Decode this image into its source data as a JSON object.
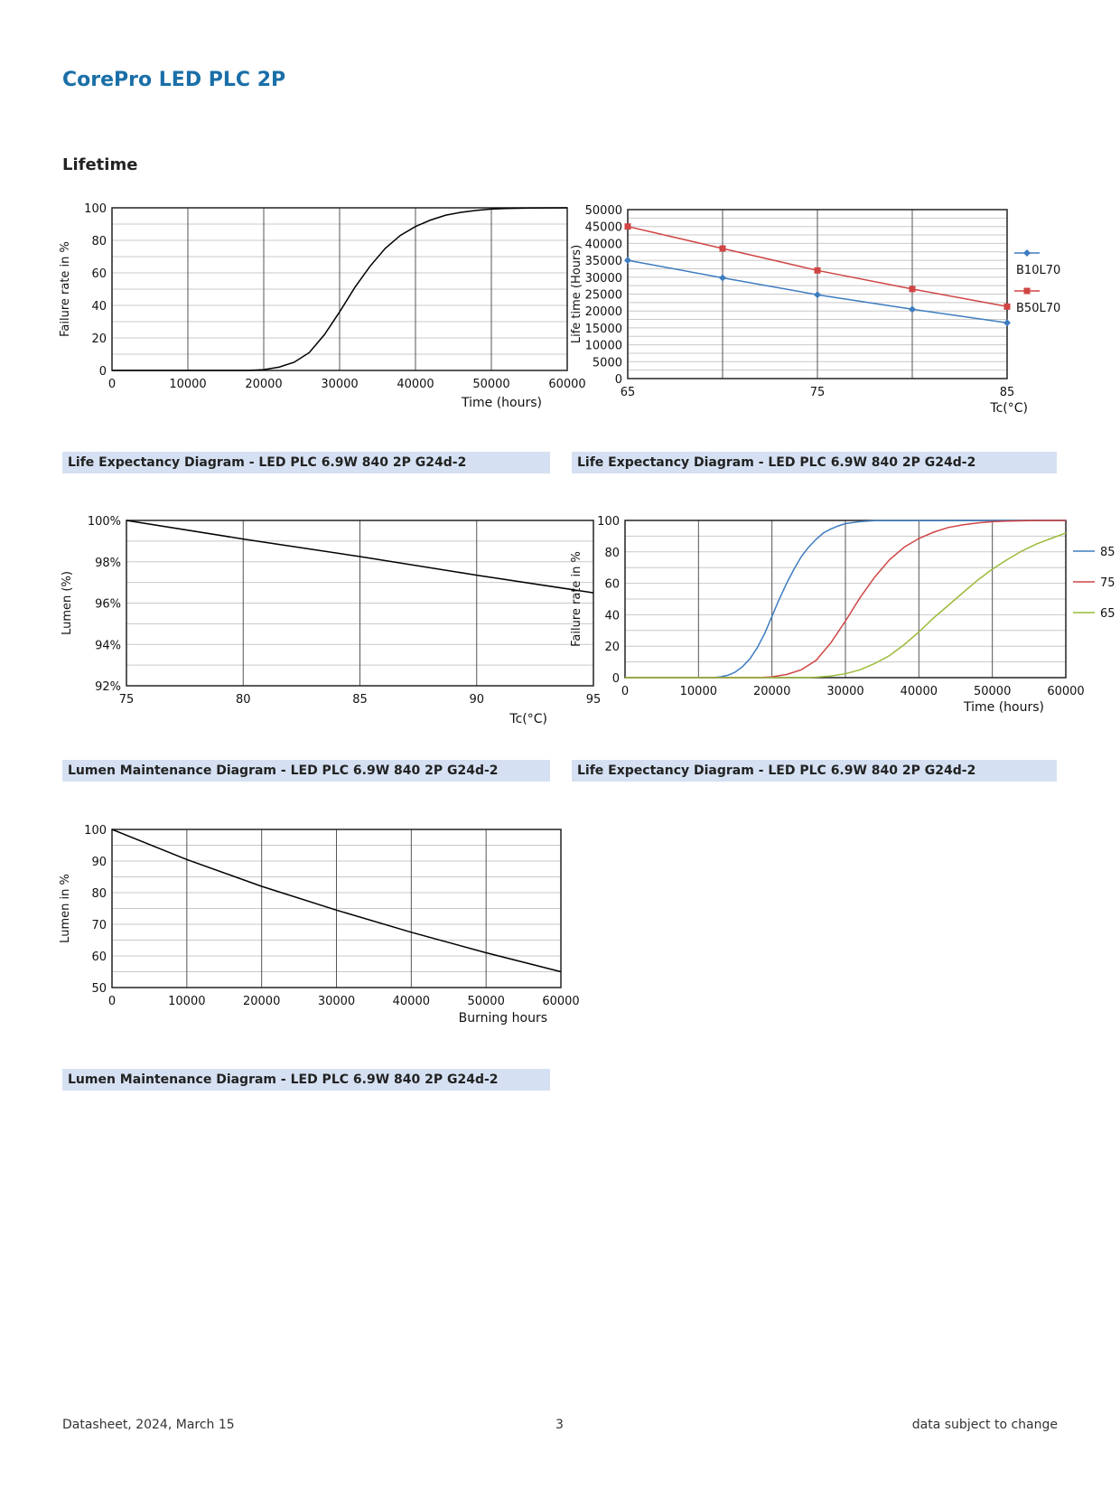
{
  "page": {
    "title": "CorePro LED PLC 2P",
    "section": "Lifetime",
    "footer": {
      "left": "Datasheet, 2024, March 15",
      "center": "3",
      "right": "data subject to change"
    }
  },
  "captions": {
    "c1": "Life Expectancy Diagram - LED PLC 6.9W 840 2P G24d-2",
    "c2": "Life Expectancy Diagram - LED PLC 6.9W 840 2P G24d-2",
    "c3": "Lumen Maintenance Diagram - LED PLC 6.9W 840 2P G24d-2",
    "c4": "Life Expectancy Diagram - LED PLC 6.9W 840 2P G24d-2",
    "c5": "Lumen Maintenance Diagram - LED PLC 6.9W 840 2P G24d-2"
  },
  "chart_data": [
    {
      "type": "line",
      "xlabel": "Time (hours)",
      "ylabel": "Failure rate in %",
      "xlim": [
        0,
        60000
      ],
      "ylim": [
        0,
        100
      ],
      "xticks": [
        "0",
        "10000",
        "20000",
        "30000",
        "40000",
        "50000",
        "60000"
      ],
      "yticks": [
        "0",
        "20",
        "40",
        "60",
        "80",
        "100"
      ],
      "grid": true,
      "line_color": "#000000",
      "series": [
        {
          "x": [
            0,
            18000,
            20000,
            22000,
            24000,
            26000,
            28000,
            30000,
            32000,
            34000,
            36000,
            38000,
            40000,
            42000,
            44000,
            46000,
            48000,
            50000,
            52000,
            55000,
            60000
          ],
          "values": [
            0,
            0,
            0.5,
            2,
            5,
            11,
            22,
            36,
            51,
            64,
            75,
            83,
            88.5,
            92.5,
            95.5,
            97.2,
            98.4,
            99.2,
            99.6,
            99.9,
            100
          ]
        }
      ]
    },
    {
      "type": "line",
      "xlabel": "Tc(°C)",
      "ylabel": "Life time (Hours)",
      "xlim": [
        65,
        85
      ],
      "ylim": [
        0,
        50000
      ],
      "xticks": [
        "65",
        "75",
        "85"
      ],
      "yticks": [
        "0",
        "5000",
        "10000",
        "15000",
        "20000",
        "25000",
        "30000",
        "35000",
        "40000",
        "45000",
        "50000"
      ],
      "grid": true,
      "legend": "right",
      "series": [
        {
          "name": "B10L70",
          "color": "#3d7cc0",
          "marker": "diamond",
          "x": [
            65,
            70,
            75,
            80,
            85
          ],
          "values": [
            35000,
            29800,
            24800,
            20500,
            16500
          ]
        },
        {
          "name": "B50L70",
          "color": "#d04545",
          "marker": "square",
          "x": [
            65,
            70,
            75,
            80,
            85
          ],
          "values": [
            45000,
            38500,
            32000,
            26500,
            21300
          ]
        }
      ]
    },
    {
      "type": "line",
      "xlabel": "Tc(°C)",
      "ylabel": "Lumen (%)",
      "xlim": [
        75,
        95
      ],
      "ylim": [
        92,
        100
      ],
      "xticks": [
        "75",
        "80",
        "85",
        "90",
        "95"
      ],
      "yticks": [
        "92%",
        "94%",
        "96%",
        "98%",
        "100%"
      ],
      "grid": true,
      "line_color": "#000000",
      "series": [
        {
          "x": [
            75,
            80,
            85,
            90,
            95
          ],
          "values": [
            100,
            99.1,
            98.25,
            97.35,
            96.5
          ]
        }
      ]
    },
    {
      "type": "line",
      "xlabel": "Time (hours)",
      "ylabel": "Failure rate in %",
      "xlim": [
        0,
        60000
      ],
      "ylim": [
        0,
        100
      ],
      "xticks": [
        "0",
        "10000",
        "20000",
        "30000",
        "40000",
        "50000",
        "60000"
      ],
      "yticks": [
        "0",
        "20",
        "40",
        "60",
        "80",
        "100"
      ],
      "grid": true,
      "legend": "right",
      "series": [
        {
          "name": "85",
          "color": "#3d7cc0",
          "x": [
            0,
            12000,
            13000,
            14000,
            15000,
            16000,
            17000,
            18000,
            19000,
            20000,
            21000,
            22000,
            23000,
            24000,
            25000,
            26000,
            27000,
            28000,
            29000,
            30000,
            32000,
            34000,
            60000
          ],
          "values": [
            0,
            0,
            0.5,
            1.5,
            3.5,
            7,
            12,
            19,
            28,
            39,
            50,
            60,
            69,
            77,
            83,
            88,
            92,
            94.5,
            96.5,
            98,
            99.3,
            99.8,
            100
          ]
        },
        {
          "name": "75",
          "color": "#d04545",
          "x": [
            0,
            18000,
            20000,
            22000,
            24000,
            26000,
            28000,
            30000,
            32000,
            34000,
            36000,
            38000,
            40000,
            42000,
            44000,
            46000,
            48000,
            50000,
            52000,
            55000,
            60000
          ],
          "values": [
            0,
            0,
            0.5,
            2,
            5,
            11,
            22,
            36,
            51,
            64,
            75,
            83,
            88.5,
            92.5,
            95.5,
            97.2,
            98.4,
            99.2,
            99.6,
            99.9,
            100
          ]
        },
        {
          "name": "65",
          "color": "#9bbb3b",
          "x": [
            0,
            24000,
            26000,
            28000,
            30000,
            32000,
            34000,
            36000,
            38000,
            40000,
            42000,
            44000,
            46000,
            48000,
            50000,
            52000,
            54000,
            56000,
            58000,
            60000
          ],
          "values": [
            0,
            0,
            0.3,
            1,
            2.5,
            5,
            9,
            14,
            21,
            29,
            38,
            46,
            54,
            62,
            69,
            75,
            80.5,
            85,
            88.5,
            92
          ]
        }
      ]
    },
    {
      "type": "line",
      "xlabel": "Burning hours",
      "ylabel": "Lumen in %",
      "xlim": [
        0,
        60000
      ],
      "ylim": [
        50,
        100
      ],
      "xticks": [
        "0",
        "10000",
        "20000",
        "30000",
        "40000",
        "50000",
        "60000"
      ],
      "yticks": [
        "50",
        "60",
        "70",
        "80",
        "90",
        "100"
      ],
      "grid": true,
      "line_color": "#000000",
      "series": [
        {
          "x": [
            0,
            10000,
            20000,
            30000,
            40000,
            50000,
            60000
          ],
          "values": [
            100,
            90.5,
            82,
            74.5,
            67.5,
            61,
            55
          ]
        }
      ]
    }
  ]
}
